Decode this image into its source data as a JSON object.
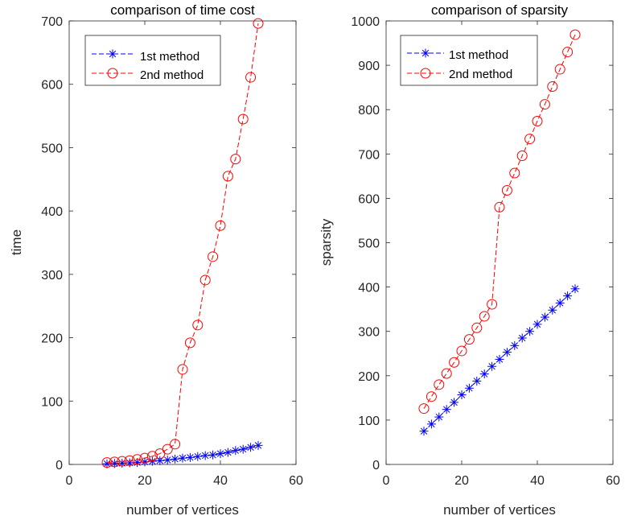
{
  "colors": {
    "series1": "#0000ff",
    "series2": "#ff0000",
    "axis": "#262626"
  },
  "chart_data": [
    {
      "type": "line",
      "title": "comparison of time cost",
      "xlabel": "number of vertices",
      "ylabel": "time",
      "xlim": [
        0,
        60
      ],
      "ylim": [
        0,
        700
      ],
      "xticks": [
        0,
        20,
        40,
        60
      ],
      "yticks": [
        0,
        100,
        200,
        300,
        400,
        500,
        600,
        700
      ],
      "grid": false,
      "legend_position": "top-left",
      "x": [
        10,
        12,
        14,
        16,
        18,
        20,
        22,
        24,
        26,
        28,
        30,
        32,
        34,
        36,
        38,
        40,
        42,
        44,
        46,
        48,
        50
      ],
      "series": [
        {
          "name": "1st method",
          "marker": "star",
          "line": "dashed",
          "color": "#0000ff",
          "values": [
            1,
            1.5,
            2,
            2.5,
            3,
            4,
            5,
            6,
            7,
            8.5,
            10,
            11,
            12.5,
            14,
            15,
            17,
            19,
            22,
            24,
            27,
            30
          ]
        },
        {
          "name": "2nd method",
          "marker": "circle",
          "line": "dashed",
          "color": "#ff0000",
          "values": [
            3,
            4,
            5,
            6,
            8,
            10,
            13,
            17,
            24,
            32,
            150,
            192,
            220,
            291,
            328,
            377,
            455,
            482,
            545,
            611,
            696
          ]
        }
      ]
    },
    {
      "type": "line",
      "title": "comparison of sparsity",
      "xlabel": "number of vertices",
      "ylabel": "sparsity",
      "xlim": [
        0,
        60
      ],
      "ylim": [
        0,
        1000
      ],
      "xticks": [
        0,
        20,
        40,
        60
      ],
      "yticks": [
        0,
        100,
        200,
        300,
        400,
        500,
        600,
        700,
        800,
        900,
        1000
      ],
      "grid": false,
      "legend_position": "top-left",
      "x": [
        10,
        12,
        14,
        16,
        18,
        20,
        22,
        24,
        26,
        28,
        30,
        32,
        34,
        36,
        38,
        40,
        42,
        44,
        46,
        48,
        50
      ],
      "series": [
        {
          "name": "1st method",
          "marker": "star",
          "line": "dashed",
          "color": "#0000ff",
          "values": [
            75,
            91,
            107,
            124,
            140,
            157,
            172,
            188,
            204,
            221,
            237,
            253,
            268,
            285,
            300,
            316,
            332,
            348,
            364,
            380,
            396
          ]
        },
        {
          "name": "2nd method",
          "marker": "circle",
          "line": "dashed",
          "color": "#ff0000",
          "values": [
            126,
            153,
            180,
            205,
            230,
            256,
            282,
            308,
            334,
            361,
            580,
            618,
            657,
            696,
            734,
            774,
            812,
            852,
            891,
            930,
            969
          ]
        }
      ]
    }
  ]
}
